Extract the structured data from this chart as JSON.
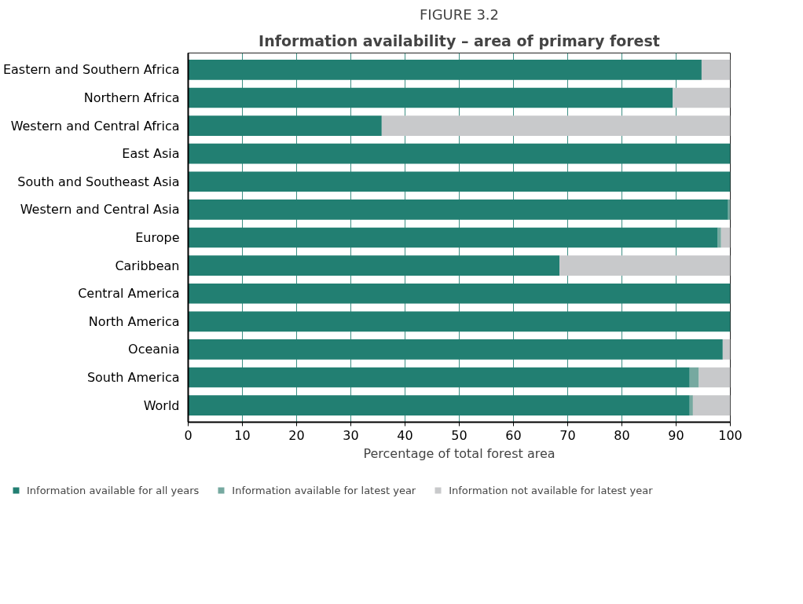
{
  "chart_data": {
    "type": "bar",
    "orientation": "horizontal",
    "stacked": true,
    "title": "FIGURE 3.2",
    "subtitle": "Information availability – area of primary forest",
    "xlabel": "Percentage of total forest area",
    "categories": [
      "Eastern and Southern Africa",
      "Northern Africa",
      "Western and Central Africa",
      "East Asia",
      "South and Southeast Asia",
      "Western and Central Asia",
      "Europe",
      "Caribbean",
      "Central America",
      "North America",
      "Oceania",
      "South America",
      "World"
    ],
    "series": [
      {
        "name": "Information available for all years",
        "color": "#227f72",
        "values": [
          94.7,
          89.4,
          35.7,
          100,
          100,
          99.6,
          97.7,
          68.5,
          100,
          100,
          98.6,
          92.5,
          92.5
        ]
      },
      {
        "name": "Information available for latest year",
        "color": "#76a9a0",
        "values": [
          0,
          0,
          0,
          0,
          0,
          0.4,
          0.6,
          0,
          0,
          0,
          0,
          1.7,
          0.6
        ]
      },
      {
        "name": "Information not available for latest year",
        "color": "#c8c9cb",
        "values": [
          5.3,
          10.6,
          64.3,
          0,
          0,
          0,
          1.7,
          31.5,
          0,
          0,
          1.4,
          5.8,
          6.9
        ]
      }
    ],
    "xlim": [
      0,
      100
    ],
    "xticks": [
      0,
      10,
      20,
      30,
      40,
      50,
      60,
      70,
      80,
      90,
      100
    ],
    "grid": "x",
    "legend": "bottom"
  }
}
